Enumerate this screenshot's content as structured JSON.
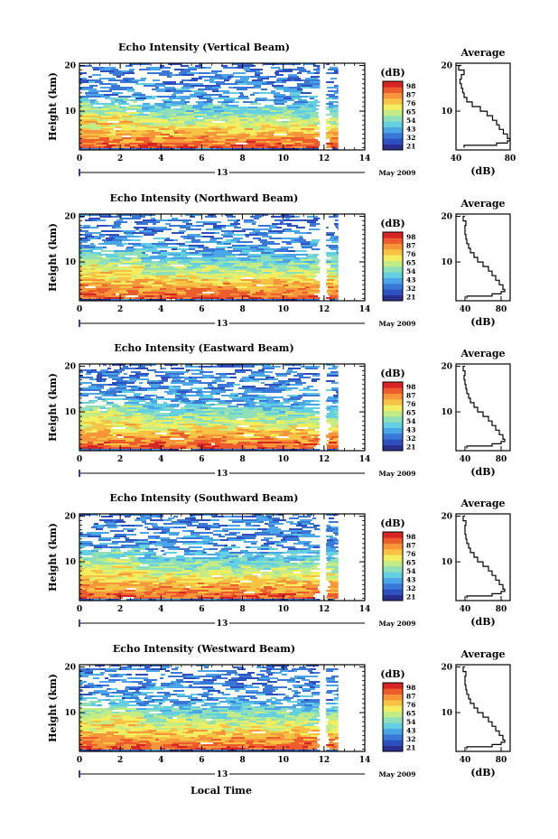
{
  "footer": {
    "xlabel": "Local Time"
  },
  "colorbar": {
    "unit": "(dB)",
    "colors": [
      "#2a2f8f",
      "#2d4fc0",
      "#3a78d8",
      "#4aa6e6",
      "#63cfe0",
      "#8fe0b8",
      "#c4ec86",
      "#f2ee60",
      "#f8c244",
      "#f6953a",
      "#ee5c2e",
      "#d92424"
    ]
  },
  "chart_data": [
    {
      "type": "heatmap",
      "title": "Echo Intensity (Vertical Beam)",
      "ylabel": "Height (km)",
      "x_ticks": [
        0,
        2,
        4,
        6,
        8,
        10,
        12,
        14
      ],
      "x_range": [
        0,
        14
      ],
      "y_ticks": [
        10,
        20
      ],
      "y_range": [
        1.5,
        20.5
      ],
      "data_gap_hours": [
        11.8,
        12.1
      ],
      "data_end_hours": 12.7,
      "date_day": "13",
      "date_label": "May 2009",
      "colorbar_unit": "(dB)",
      "colorbar_ticks": [
        "21",
        "32",
        "43",
        "54",
        "65",
        "76",
        "87",
        "98"
      ],
      "profile": {
        "title": "Average",
        "xlabel": "(dB)",
        "x_ticks": [
          40,
          80
        ],
        "x_range": [
          40,
          80
        ],
        "y_ticks": [
          10,
          20
        ],
        "heights_km": [
          2,
          2.5,
          3,
          3.5,
          4,
          5,
          6,
          7,
          8,
          9,
          10,
          11,
          12,
          13,
          14,
          15,
          16,
          17,
          18,
          19,
          20
        ],
        "values_db": [
          46,
          70,
          78,
          80,
          78,
          75,
          72,
          70,
          67,
          63,
          58,
          52,
          48,
          46,
          45,
          44,
          43,
          44,
          46,
          42,
          44
        ]
      }
    },
    {
      "type": "heatmap",
      "title": "Echo Intensity (Northward Beam)",
      "ylabel": "Height (km)",
      "x_ticks": [
        0,
        2,
        4,
        6,
        8,
        10,
        12,
        14
      ],
      "x_range": [
        0,
        14
      ],
      "y_ticks": [
        10,
        20
      ],
      "y_range": [
        1.5,
        20.5
      ],
      "data_gap_hours": [
        11.8,
        12.1
      ],
      "data_end_hours": 12.7,
      "date_day": "13",
      "date_label": "May 2009",
      "colorbar_unit": "(dB)",
      "colorbar_ticks": [
        "21",
        "32",
        "43",
        "54",
        "65",
        "76",
        "87",
        "98"
      ],
      "profile": {
        "title": "Average",
        "xlabel": "(dB)",
        "x_ticks": [
          40,
          80
        ],
        "x_range": [
          30,
          90
        ],
        "y_ticks": [
          10,
          20
        ],
        "heights_km": [
          2,
          2.5,
          3,
          3.5,
          4,
          5,
          6,
          7,
          8,
          9,
          10,
          11,
          12,
          13,
          14,
          15,
          16,
          17,
          18,
          19,
          20
        ],
        "values_db": [
          42,
          70,
          80,
          84,
          82,
          78,
          74,
          70,
          66,
          60,
          54,
          50,
          46,
          44,
          42,
          41,
          40,
          40,
          41,
          38,
          40
        ]
      }
    },
    {
      "type": "heatmap",
      "title": "Echo Intensity (Eastward Beam)",
      "ylabel": "Height (km)",
      "x_ticks": [
        0,
        2,
        4,
        6,
        8,
        10,
        12,
        14
      ],
      "x_range": [
        0,
        14
      ],
      "y_ticks": [
        10,
        20
      ],
      "y_range": [
        1.5,
        20.5
      ],
      "data_gap_hours": [
        11.8,
        12.1
      ],
      "data_end_hours": 12.7,
      "date_day": "13",
      "date_label": "May 2009",
      "colorbar_unit": "(dB)",
      "colorbar_ticks": [
        "21",
        "32",
        "43",
        "54",
        "65",
        "76",
        "87",
        "98"
      ],
      "profile": {
        "title": "Average",
        "xlabel": "(dB)",
        "x_ticks": [
          40,
          80
        ],
        "x_range": [
          30,
          90
        ],
        "y_ticks": [
          10,
          20
        ],
        "heights_km": [
          2,
          2.5,
          3,
          3.5,
          4,
          5,
          6,
          7,
          8,
          9,
          10,
          11,
          12,
          13,
          14,
          15,
          16,
          17,
          18,
          19,
          20
        ],
        "values_db": [
          42,
          70,
          80,
          84,
          82,
          78,
          74,
          70,
          66,
          60,
          54,
          50,
          46,
          44,
          42,
          41,
          40,
          39,
          40,
          38,
          40
        ]
      }
    },
    {
      "type": "heatmap",
      "title": "Echo Intensity (Southward Beam)",
      "ylabel": "Height (km)",
      "x_ticks": [
        0,
        2,
        4,
        6,
        8,
        10,
        12,
        14
      ],
      "x_range": [
        0,
        14
      ],
      "y_ticks": [
        10,
        20
      ],
      "y_range": [
        1.5,
        20.5
      ],
      "data_gap_hours": [
        11.8,
        12.1
      ],
      "data_end_hours": 12.7,
      "date_day": "13",
      "date_label": "May 2009",
      "colorbar_unit": "(dB)",
      "colorbar_ticks": [
        "21",
        "32",
        "43",
        "54",
        "65",
        "76",
        "87",
        "98"
      ],
      "profile": {
        "title": "Average",
        "xlabel": "(dB)",
        "x_ticks": [
          40,
          80
        ],
        "x_range": [
          30,
          90
        ],
        "y_ticks": [
          10,
          20
        ],
        "heights_km": [
          2,
          2.5,
          3,
          3.5,
          4,
          5,
          6,
          7,
          8,
          9,
          10,
          11,
          12,
          13,
          14,
          15,
          16,
          17,
          18,
          19,
          20
        ],
        "values_db": [
          42,
          70,
          80,
          84,
          82,
          78,
          74,
          70,
          66,
          60,
          54,
          50,
          46,
          44,
          42,
          41,
          40,
          40,
          41,
          38,
          40
        ]
      }
    },
    {
      "type": "heatmap",
      "title": "Echo Intensity (Westward Beam)",
      "ylabel": "Height (km)",
      "x_ticks": [
        0,
        2,
        4,
        6,
        8,
        10,
        12,
        14
      ],
      "x_range": [
        0,
        14
      ],
      "y_ticks": [
        10,
        20
      ],
      "y_range": [
        1.5,
        20.5
      ],
      "data_gap_hours": [
        11.8,
        12.1
      ],
      "data_end_hours": 12.7,
      "date_day": "13",
      "date_label": "May 2009",
      "colorbar_unit": "(dB)",
      "colorbar_ticks": [
        "21",
        "32",
        "43",
        "54",
        "65",
        "76",
        "87",
        "98"
      ],
      "profile": {
        "title": "Average",
        "xlabel": "(dB)",
        "x_ticks": [
          40,
          80
        ],
        "x_range": [
          30,
          90
        ],
        "y_ticks": [
          10,
          20
        ],
        "heights_km": [
          2,
          2.5,
          3,
          3.5,
          4,
          5,
          6,
          7,
          8,
          9,
          10,
          11,
          12,
          13,
          14,
          15,
          16,
          17,
          18,
          19,
          20
        ],
        "values_db": [
          42,
          70,
          80,
          84,
          82,
          78,
          74,
          70,
          66,
          60,
          54,
          50,
          46,
          44,
          42,
          41,
          40,
          40,
          41,
          38,
          40
        ]
      }
    }
  ]
}
